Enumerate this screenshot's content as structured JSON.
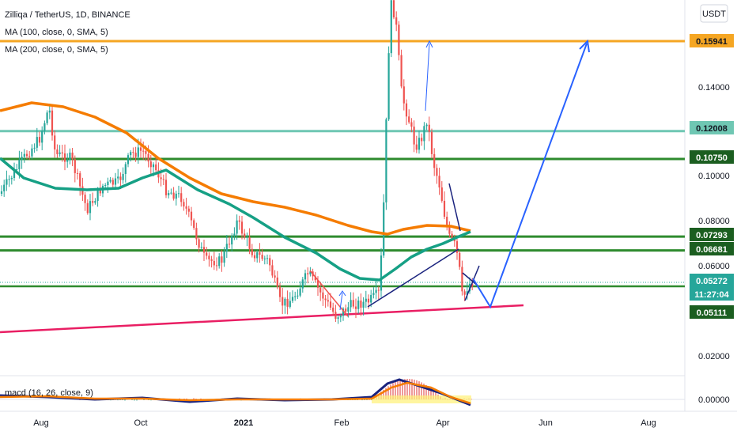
{
  "header": {
    "symbol_line": "Zilliqa / TetherUS, 1D, BINANCE",
    "ma100": "MA (100, close, 0, SMA, 5)",
    "ma200": "MA (200, close, 0, SMA, 5)",
    "currency_button": "USDT",
    "macd_label": "macd (16, 26, close, 9)"
  },
  "colors": {
    "candle_up": "#26a69a",
    "candle_down": "#ef5350",
    "ma100": "#f57c00",
    "ma200": "#16a085",
    "level_green": "#2e8b2e",
    "level_orange": "#f5a623",
    "level_teal": "#6fc7b3",
    "support_line": "#e91e63",
    "projection": "#2962ff",
    "wedge": "#1a237e"
  },
  "chart_data": {
    "type": "candlestick",
    "title": "Zilliqa / TetherUS, 1D, BINANCE",
    "y_axis": {
      "ticks": [
        "0.14000",
        "0.10000",
        "0.08000",
        "0.06000",
        "0.02000",
        "0.00000"
      ],
      "tick_values": [
        0.14,
        0.1,
        0.08,
        0.06,
        0.02,
        0.0
      ]
    },
    "x_axis": {
      "ticks": [
        "Aug",
        "Oct",
        "2021",
        "Feb",
        "Apr",
        "Jun",
        "Aug"
      ]
    },
    "price_tags": [
      {
        "value": 0.15941,
        "label": "0.15941",
        "bg": "#f5a623",
        "fg": "#131722"
      },
      {
        "value": 0.12008,
        "label": "0.12008",
        "bg": "#6fc7b3",
        "fg": "#131722"
      },
      {
        "value": 0.1075,
        "label": "0.10750",
        "bg": "#1b5e20",
        "fg": "#ffffff"
      },
      {
        "value": 0.07293,
        "label": "0.07293",
        "bg": "#1b5e20",
        "fg": "#ffffff"
      },
      {
        "value": 0.06681,
        "label": "0.06681",
        "bg": "#1b5e20",
        "fg": "#ffffff"
      },
      {
        "value": 0.05272,
        "label": "0.05272",
        "bg": "#26a69a",
        "fg": "#ffffff"
      },
      {
        "value": 0.05272,
        "label": "11:27:04",
        "bg": "#26a69a",
        "fg": "#ffffff"
      },
      {
        "value": 0.05111,
        "label": "0.05111",
        "bg": "#1b5e20",
        "fg": "#ffffff"
      }
    ],
    "horizontal_levels": [
      0.15941,
      0.12008,
      0.1075,
      0.07293,
      0.06681,
      0.05111
    ],
    "last_price": 0.05272,
    "series": [
      {
        "name": "MA (100, close, 0, SMA, 5)"
      },
      {
        "name": "MA (200, close, 0, SMA, 5)"
      }
    ],
    "grid": false
  }
}
